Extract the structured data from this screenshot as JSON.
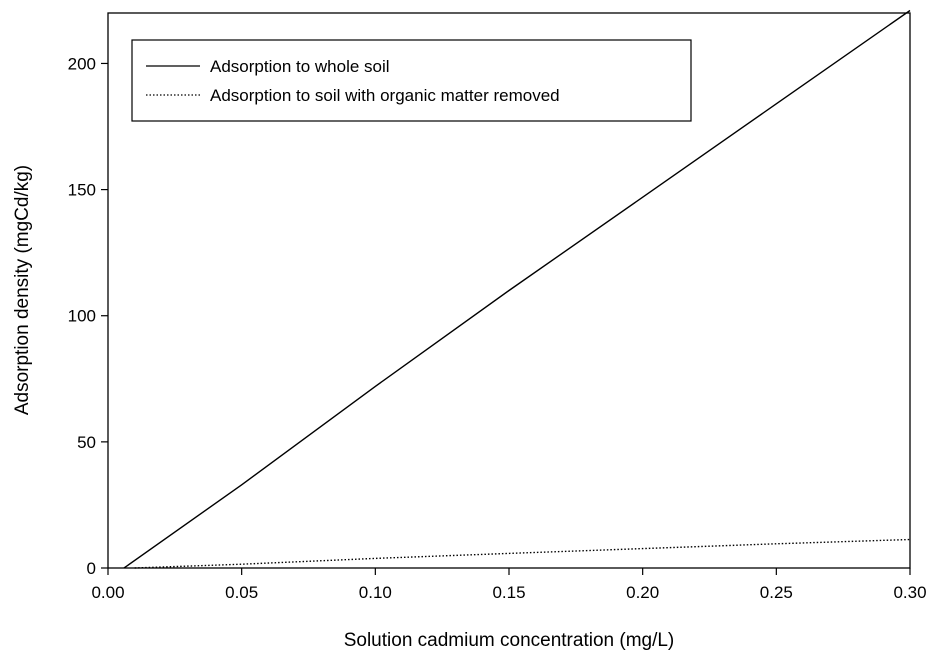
{
  "chart_data": {
    "type": "line",
    "title": "",
    "xlabel": "Solution cadmium concentration (mg/L)",
    "ylabel": "Adsorption density (mgCd/kg)",
    "xlim": [
      0.0,
      0.3
    ],
    "ylim": [
      0,
      220
    ],
    "xticks": [
      0.0,
      0.05,
      0.1,
      0.15,
      0.2,
      0.25,
      0.3
    ],
    "xtick_labels": [
      "0.00",
      "0.05",
      "0.10",
      "0.15",
      "0.20",
      "0.25",
      "0.30"
    ],
    "yticks": [
      0,
      50,
      100,
      150,
      200
    ],
    "ytick_labels": [
      "0",
      "50",
      "100",
      "150",
      "200"
    ],
    "grid": false,
    "legend_position": "top-left",
    "series": [
      {
        "name": "Adsorption to whole soil",
        "style": "solid",
        "color": "#000000",
        "x": [
          0.006,
          0.05,
          0.1,
          0.15,
          0.2,
          0.25,
          0.3
        ],
        "y": [
          0,
          33,
          72,
          110,
          147,
          184,
          221
        ]
      },
      {
        "name": "Adsorption to soil with organic matter removed",
        "style": "dotted",
        "color": "#000000",
        "x": [
          0.01,
          0.05,
          0.1,
          0.15,
          0.2,
          0.25,
          0.3
        ],
        "y": [
          0,
          1.5,
          3.8,
          5.8,
          7.7,
          9.6,
          11.3
        ]
      }
    ]
  }
}
